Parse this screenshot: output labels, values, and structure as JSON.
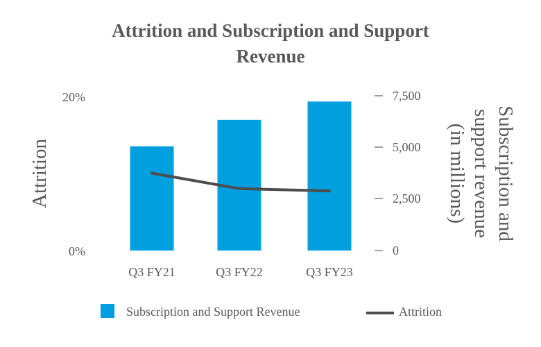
{
  "chart_data": {
    "type": "bar",
    "title_line1": "Attrition  and Subscription and Support",
    "title_line2": "Revenue",
    "categories": [
      "Q3 FY21",
      "Q3 FY22",
      "Q3 FY23"
    ],
    "series": [
      {
        "name": "Subscription and Support Revenue",
        "kind": "bar",
        "axis": "right",
        "color": "#009fdf",
        "values": [
          5050,
          6330,
          7220
        ]
      },
      {
        "name": "Attrition",
        "kind": "line",
        "axis": "left",
        "color": "#4d4d4d",
        "values": [
          10.0,
          8.0,
          7.7
        ]
      }
    ],
    "y_left": {
      "label": "Attrition",
      "ticks": [
        "20%",
        "0%"
      ],
      "range": [
        0,
        20
      ]
    },
    "y_right": {
      "label_line1": "Subscription and",
      "label_line2": "support revenue",
      "label_line3": "(in millions)",
      "ticks": [
        "7,500",
        "5,000",
        "2,500",
        "0"
      ],
      "range": [
        0,
        7500
      ]
    },
    "legend": {
      "placement": "bottom",
      "items": [
        "Subscription and Support Revenue",
        "Attrition"
      ]
    },
    "grid": false
  }
}
